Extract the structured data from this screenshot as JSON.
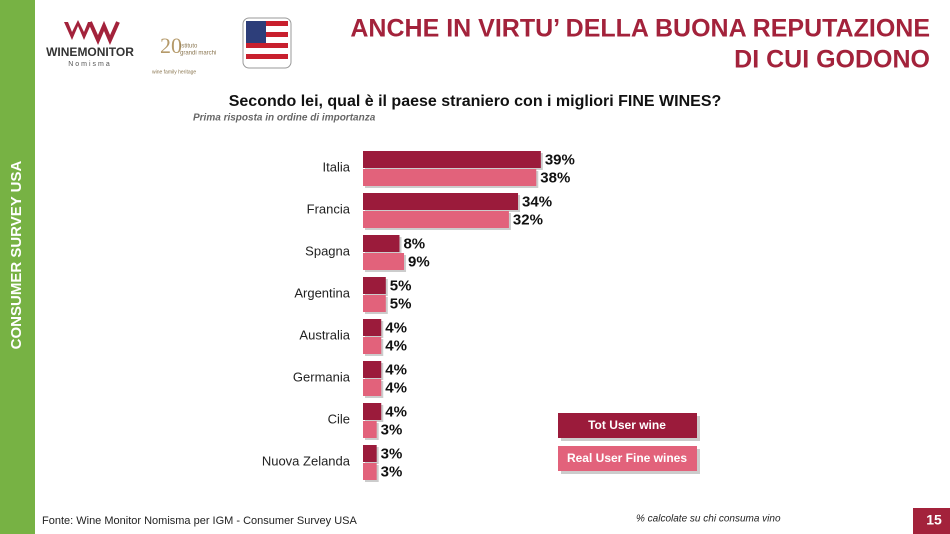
{
  "header": {
    "title_lines": [
      "ANCHE IN VIRTU’ DELLA BUONA REPUTAZIONE",
      "DI CUI GODONO"
    ],
    "logo_main": "WINEMONITOR",
    "logo_sub": "Nomisma",
    "logo2_number": "20",
    "logo2_lines": [
      "istituto",
      "grandi marchi",
      "wine family heritage"
    ]
  },
  "sidebar": {
    "label": "CONSUMER SURVEY USA"
  },
  "chart_data": {
    "type": "bar",
    "orientation": "horizontal",
    "title": "Secondo lei, qual è il paese straniero con i migliori FINE WINES?",
    "subtitle": "Prima risposta in ordine di importanza",
    "categories": [
      "Italia",
      "Francia",
      "Spagna",
      "Argentina",
      "Australia",
      "Germania",
      "Cile",
      "Nuova Zelanda"
    ],
    "series": [
      {
        "name": "Tot User wine",
        "color": "#9b1b3b",
        "values": [
          39,
          34,
          8,
          5,
          4,
          4,
          4,
          3
        ],
        "value_labels": [
          "39%",
          "34%",
          "8%",
          "5%",
          "4%",
          "4%",
          "4%",
          "3%"
        ]
      },
      {
        "name": "Real User Fine wines",
        "color": "#e2627b",
        "values": [
          38,
          32,
          9,
          5,
          4,
          4,
          3,
          3
        ],
        "value_labels": [
          "38%",
          "32%",
          "9%",
          "5%",
          "4%",
          "4%",
          "3%",
          "3%"
        ]
      }
    ],
    "legend": "bottom-right"
  },
  "footer": {
    "source": "Fonte: Wine Monitor Nomisma per IGM - Consumer Survey USA",
    "note": "% calcolate su chi consuma vino",
    "page": "15"
  }
}
